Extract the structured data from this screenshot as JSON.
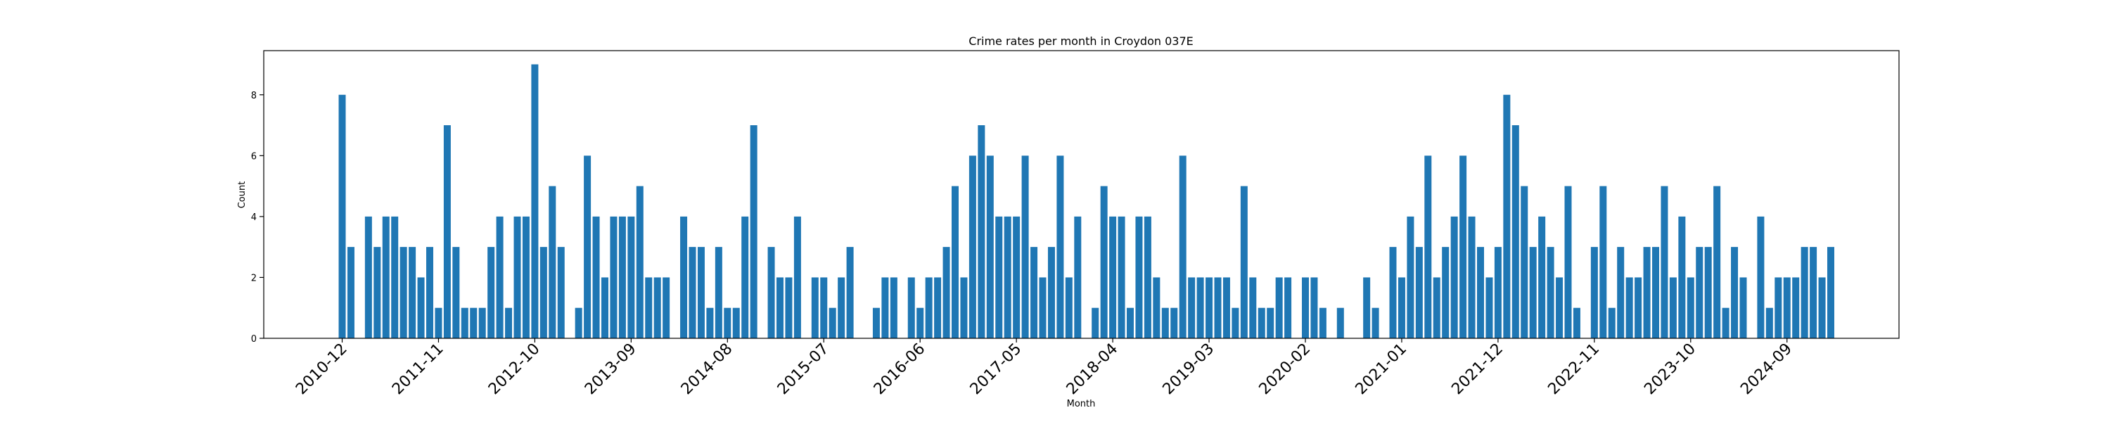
{
  "chart_data": {
    "type": "bar",
    "title": "Crime rates per month in Croydon 037E",
    "xlabel": "Month",
    "ylabel": "Count",
    "ylim": [
      0,
      9.45
    ],
    "yticks": [
      0,
      2,
      4,
      6,
      8
    ],
    "xtick_labels": [
      "2010-12",
      "2011-11",
      "2012-10",
      "2013-09",
      "2014-08",
      "2015-07",
      "2016-06",
      "2017-05",
      "2018-04",
      "2019-03",
      "2020-02",
      "2021-01",
      "2021-12",
      "2022-11",
      "2023-10",
      "2024-09"
    ],
    "grid": false,
    "color": "#1f77b4",
    "x_start": "2010-12",
    "values": [
      8,
      3,
      0,
      4,
      3,
      4,
      4,
      3,
      3,
      2,
      3,
      1,
      7,
      3,
      1,
      1,
      1,
      3,
      4,
      1,
      4,
      4,
      9,
      3,
      5,
      3,
      0,
      1,
      6,
      4,
      2,
      4,
      4,
      4,
      5,
      2,
      2,
      2,
      0,
      4,
      3,
      3,
      1,
      3,
      1,
      1,
      4,
      7,
      0,
      3,
      2,
      2,
      4,
      0,
      2,
      2,
      1,
      2,
      3,
      0,
      0,
      1,
      2,
      2,
      0,
      2,
      1,
      2,
      2,
      3,
      5,
      2,
      6,
      7,
      6,
      4,
      4,
      4,
      6,
      3,
      2,
      3,
      6,
      2,
      4,
      0,
      1,
      5,
      4,
      4,
      1,
      4,
      4,
      2,
      1,
      1,
      6,
      2,
      2,
      2,
      2,
      2,
      1,
      5,
      2,
      1,
      1,
      2,
      2,
      0,
      2,
      2,
      1,
      0,
      1,
      0,
      0,
      2,
      1,
      0,
      3,
      2,
      4,
      3,
      6,
      2,
      3,
      4,
      6,
      4,
      3,
      2,
      3,
      8,
      7,
      5,
      3,
      4,
      3,
      2,
      5,
      1,
      0,
      3,
      5,
      1,
      3,
      2,
      2,
      3,
      3,
      5,
      2,
      4,
      2,
      3,
      3,
      5,
      1,
      3,
      2,
      0,
      4,
      1,
      2,
      2,
      2,
      3,
      3,
      2,
      3
    ]
  }
}
